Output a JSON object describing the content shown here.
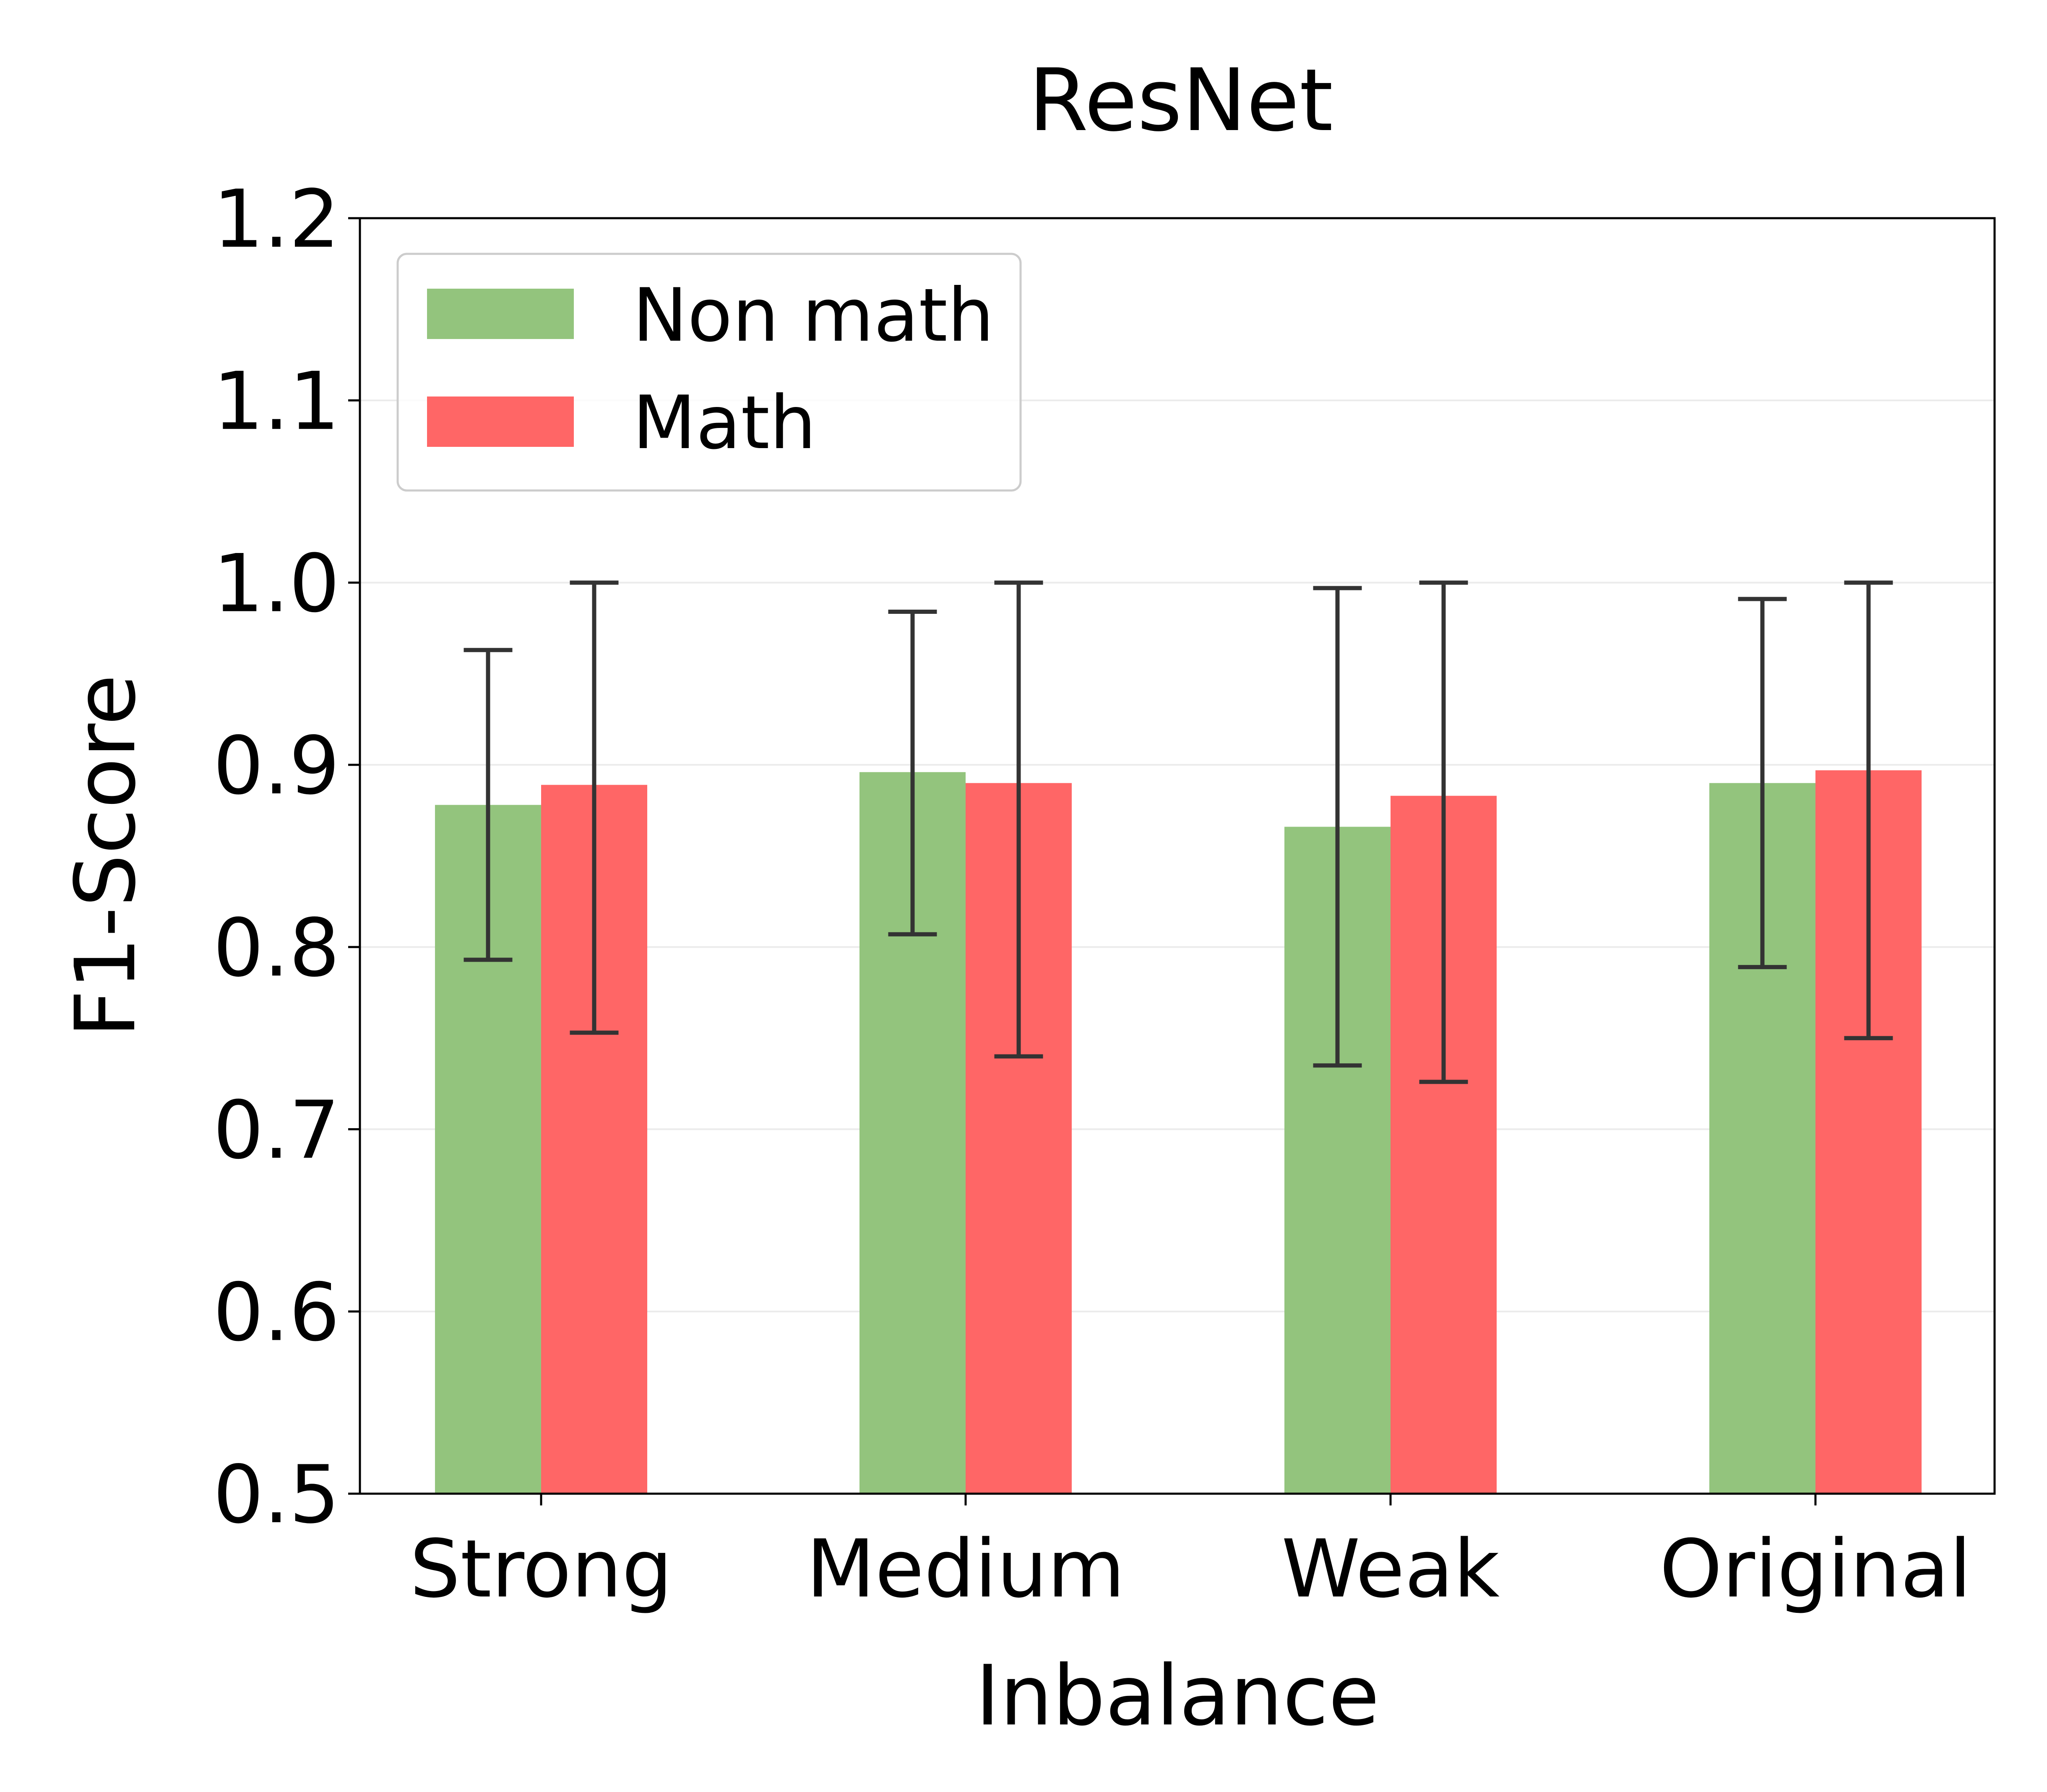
{
  "chart_data": {
    "type": "bar",
    "title": "ResNet",
    "xlabel": "Inbalance",
    "ylabel": "F1-Score",
    "categories": [
      "Strong",
      "Medium",
      "Weak",
      "Original"
    ],
    "ylim": [
      0.5,
      1.2
    ],
    "yticks": [
      "0.5",
      "0.6",
      "0.7",
      "0.8",
      "0.9",
      "1.0",
      "1.1",
      "1.2"
    ],
    "grid": "horizontal",
    "legend_position": "top-left",
    "series": [
      {
        "name": "Non math",
        "color": "#93c47d",
        "values": [
          0.878,
          0.896,
          0.866,
          0.89
        ],
        "error_low": [
          0.793,
          0.807,
          0.735,
          0.789
        ],
        "error_high": [
          0.963,
          0.984,
          0.997,
          0.991
        ]
      },
      {
        "name": "Math",
        "color": "#ff6666",
        "values": [
          0.889,
          0.89,
          0.883,
          0.897
        ],
        "error_low": [
          0.753,
          0.74,
          0.726,
          0.75
        ],
        "error_high": [
          1.0,
          1.0,
          1.0,
          1.0
        ]
      }
    ]
  }
}
